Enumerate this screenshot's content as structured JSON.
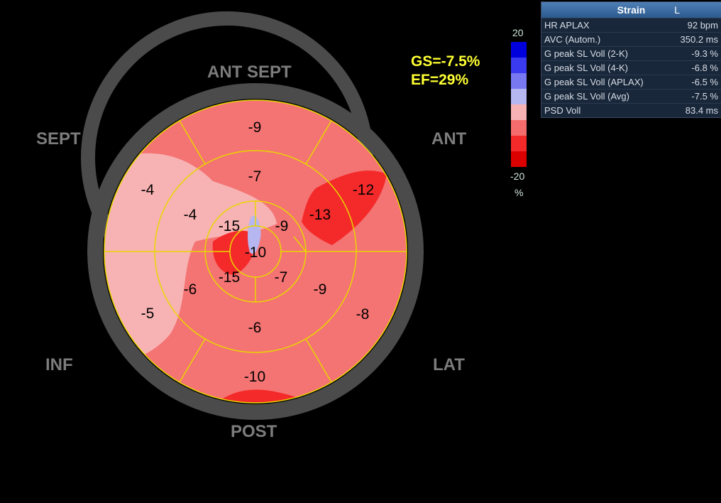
{
  "labels": {
    "ant_sept": "ANT  SEPT",
    "sept": "SEPT",
    "ant": "ANT",
    "inf": "INF",
    "lat": "LAT",
    "post": "POST"
  },
  "summary": {
    "gs": "GS=-7.5%",
    "ef": "EF=29%"
  },
  "scale": {
    "top": "20",
    "bottom": "-20",
    "unit": "%",
    "colors": [
      "#0000dd",
      "#3a3af0",
      "#7878f0",
      "#b6b6f0",
      "#f7b3b3",
      "#f56c6c",
      "#f42a2a",
      "#dd0000"
    ]
  },
  "panel": {
    "title": "Strain",
    "lead": "L",
    "rows": [
      {
        "label": "HR APLAX",
        "value": "92 bpm"
      },
      {
        "label": "AVC (Autom.)",
        "value": "350.2 ms"
      },
      {
        "label": "G peak SL Voll (2-K)",
        "value": "-9.3 %"
      },
      {
        "label": "G peak SL Voll (4-K)",
        "value": "-6.8 %"
      },
      {
        "label": "G peak SL Voll (APLAX)",
        "value": "-6.5 %"
      },
      {
        "label": "G peak SL Voll (Avg)",
        "value": "-7.5 %"
      },
      {
        "label": "PSD Voll",
        "value": "83.4 ms"
      }
    ]
  },
  "segments": {
    "basal": [
      "-9",
      "-12",
      "-8",
      "-10",
      "-5",
      "-4"
    ],
    "mid": [
      "-7",
      "-13",
      "-9",
      "-6",
      "-6",
      "-4"
    ],
    "apical": [
      "-9",
      "-7",
      "-15",
      "-15"
    ],
    "apex": "-10"
  }
}
